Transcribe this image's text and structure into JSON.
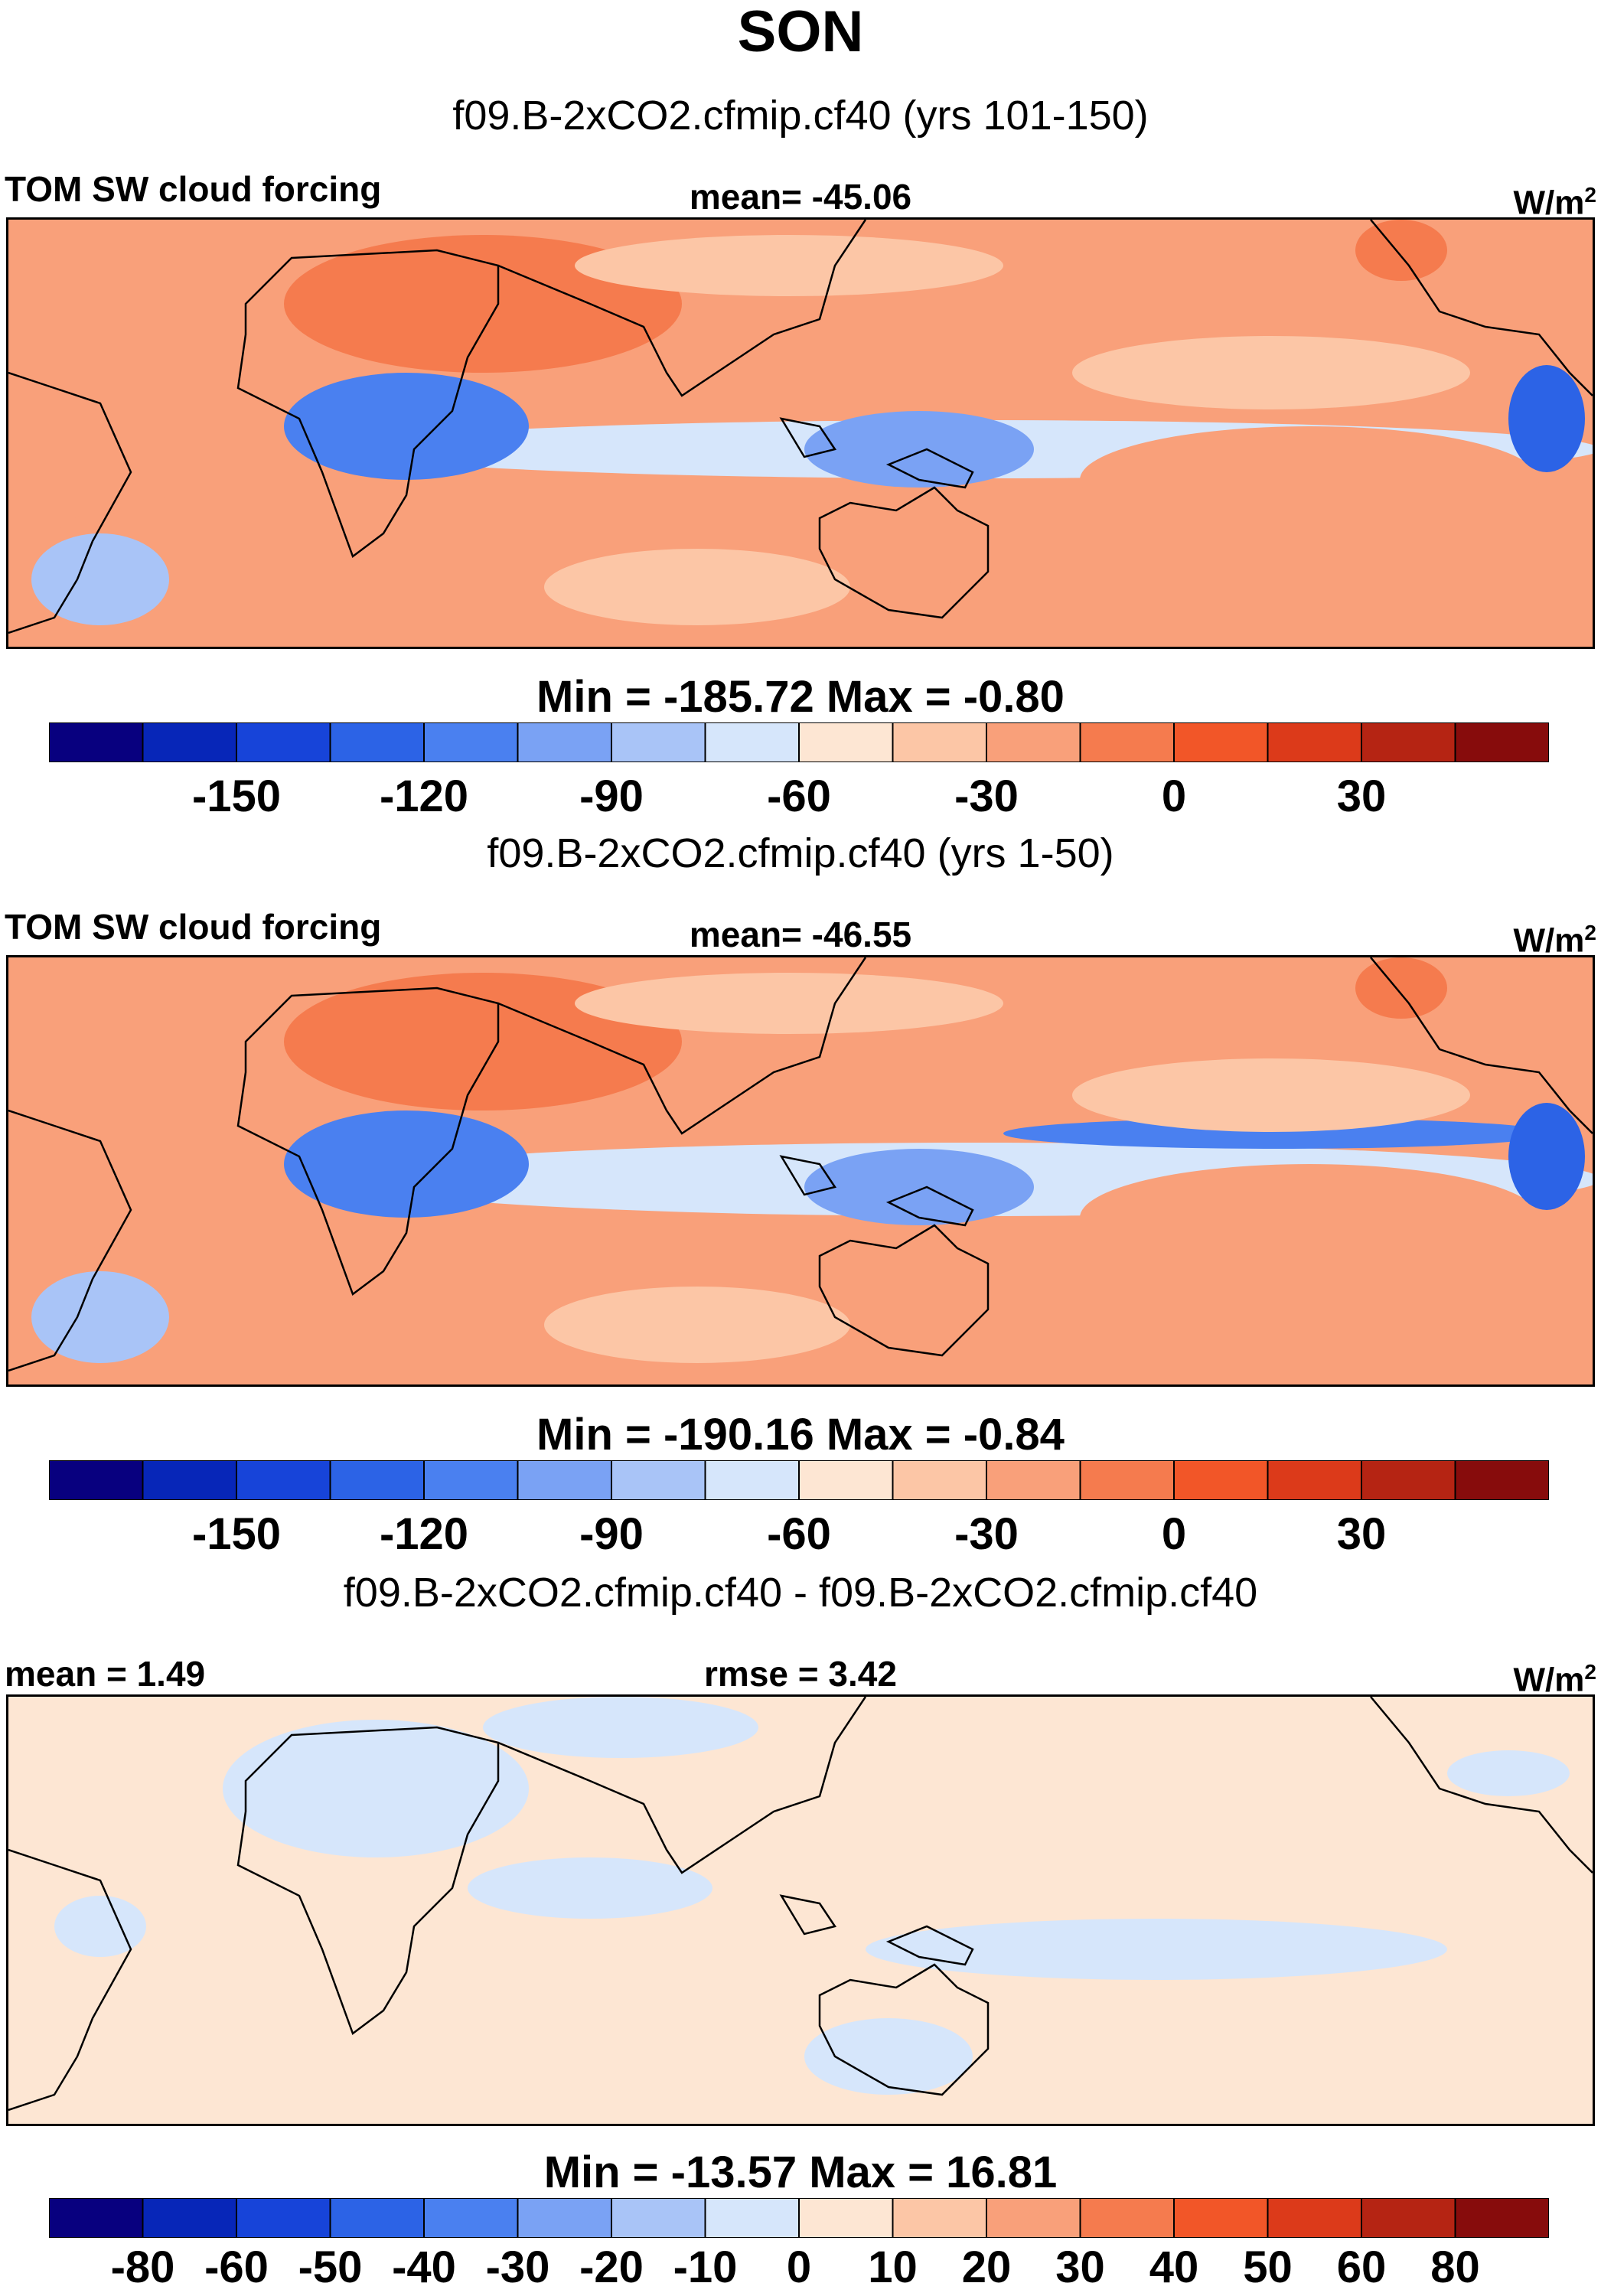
{
  "season": "SON",
  "colors": {
    "absolute": [
      "#08007f",
      "#0726b8",
      "#1744d9",
      "#2c63e6",
      "#4a80f0",
      "#7aa2f4",
      "#a9c4f7",
      "#d6e6fb",
      "#fde6d3",
      "#fcc6a6",
      "#f9a07a",
      "#f57b4e",
      "#f25628",
      "#dc3a1a",
      "#b52413",
      "#870c0c"
    ],
    "diff": [
      "#08007f",
      "#0726b8",
      "#1744d9",
      "#2c63e6",
      "#4a80f0",
      "#7aa2f4",
      "#a9c4f7",
      "#d6e6fb",
      "#fde6d3",
      "#fcc6a6",
      "#f9a07a",
      "#f57b4e",
      "#f25628",
      "#dc3a1a",
      "#b52413",
      "#870c0c"
    ]
  },
  "panels": [
    {
      "title": "f09.B-2xCO2.cfmip.cf40 (yrs 101-150)",
      "left_label": "TOM SW cloud forcing",
      "center_label": "mean= -45.06",
      "units_base": "W/m",
      "units_exp": "2",
      "min_max": "Min = -185.72 Max =  -0.80",
      "colorbar_labels": [
        "-150",
        "-120",
        "-90",
        "-60",
        "-30",
        "0",
        "30"
      ]
    },
    {
      "title": "f09.B-2xCO2.cfmip.cf40 (yrs 1-50)",
      "left_label": "TOM SW cloud forcing",
      "center_label": "mean= -46.55",
      "units_base": "W/m",
      "units_exp": "2",
      "min_max": "Min = -190.16 Max =  -0.84",
      "colorbar_labels": [
        "-150",
        "-120",
        "-90",
        "-60",
        "-30",
        "0",
        "30"
      ]
    },
    {
      "title": "f09.B-2xCO2.cfmip.cf40 - f09.B-2xCO2.cfmip.cf40",
      "left_label": "mean =   1.49",
      "center_label": "rmse =   3.42",
      "units_base": "W/m",
      "units_exp": "2",
      "min_max": "Min = -13.57 Max =  16.81",
      "colorbar_labels": [
        "-80",
        "-60",
        "-50",
        "-40",
        "-30",
        "-20",
        "-10",
        "0",
        "10",
        "20",
        "30",
        "40",
        "50",
        "60",
        "80"
      ]
    }
  ]
}
